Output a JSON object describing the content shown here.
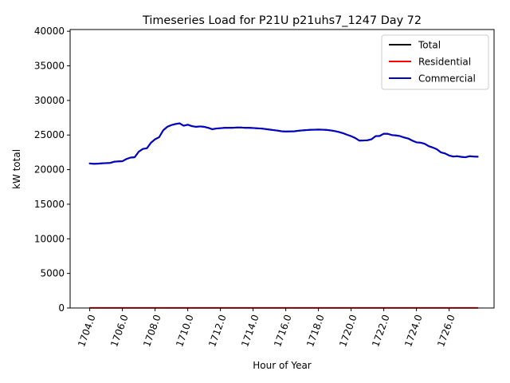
{
  "chart_data": {
    "type": "line",
    "title": "Timeseries Load for P21U p21uhs7_1247  Day 72",
    "xlabel": "Hour of Year",
    "ylabel": "kW total",
    "xlim": [
      1702.8,
      1728.75
    ],
    "ylim": [
      0,
      40250
    ],
    "xticks": [
      1704,
      1706,
      1708,
      1710,
      1712,
      1714,
      1716,
      1718,
      1720,
      1722,
      1724,
      1726
    ],
    "xtick_labels": [
      "1704.0",
      "1706.0",
      "1708.0",
      "1710.0",
      "1712.0",
      "1714.0",
      "1716.0",
      "1718.0",
      "1720.0",
      "1722.0",
      "1724.0",
      "1726.0"
    ],
    "yticks": [
      0,
      5000,
      10000,
      15000,
      20000,
      25000,
      30000,
      35000,
      40000
    ],
    "ytick_labels": [
      "0",
      "5000",
      "10000",
      "15000",
      "20000",
      "25000",
      "30000",
      "35000",
      "40000"
    ],
    "legend_position": "top-right",
    "x": [
      1704.0,
      1704.25,
      1704.5,
      1704.75,
      1705.0,
      1705.25,
      1705.5,
      1705.75,
      1706.0,
      1706.25,
      1706.5,
      1706.75,
      1707.0,
      1707.25,
      1707.5,
      1707.75,
      1708.0,
      1708.25,
      1708.5,
      1708.75,
      1709.0,
      1709.25,
      1709.5,
      1709.75,
      1710.0,
      1710.25,
      1710.5,
      1710.75,
      1711.0,
      1711.25,
      1711.5,
      1711.75,
      1712.0,
      1712.25,
      1712.5,
      1712.75,
      1713.0,
      1713.25,
      1713.5,
      1713.75,
      1714.0,
      1714.25,
      1714.5,
      1714.75,
      1715.0,
      1715.25,
      1715.5,
      1715.75,
      1716.0,
      1716.25,
      1716.5,
      1716.75,
      1717.0,
      1717.25,
      1717.5,
      1717.75,
      1718.0,
      1718.25,
      1718.5,
      1718.75,
      1719.0,
      1719.25,
      1719.5,
      1719.75,
      1720.0,
      1720.25,
      1720.5,
      1720.75,
      1721.0,
      1721.25,
      1721.5,
      1721.75,
      1722.0,
      1722.25,
      1722.5,
      1722.75,
      1723.0,
      1723.25,
      1723.5,
      1723.75,
      1724.0,
      1724.25,
      1724.5,
      1724.75,
      1725.0,
      1725.25,
      1725.5,
      1725.75,
      1726.0,
      1726.25,
      1726.5,
      1726.75,
      1727.0,
      1727.25,
      1727.5,
      1727.75
    ],
    "series": [
      {
        "name": "Total",
        "color": "#000000",
        "values": [
          20900,
          20850,
          20870,
          20920,
          20950,
          20980,
          21150,
          21200,
          21220,
          21550,
          21750,
          21800,
          22600,
          23000,
          23100,
          23900,
          24400,
          24700,
          25700,
          26200,
          26450,
          26600,
          26700,
          26350,
          26500,
          26300,
          26200,
          26250,
          26200,
          26050,
          25850,
          25950,
          26000,
          26050,
          26050,
          26050,
          26100,
          26100,
          26050,
          26050,
          26020,
          25980,
          25950,
          25880,
          25800,
          25720,
          25650,
          25550,
          25520,
          25530,
          25540,
          25620,
          25680,
          25720,
          25760,
          25780,
          25800,
          25780,
          25750,
          25680,
          25580,
          25450,
          25280,
          25050,
          24850,
          24580,
          24200,
          24220,
          24250,
          24400,
          24850,
          24880,
          25200,
          25180,
          25000,
          24950,
          24850,
          24650,
          24500,
          24200,
          23950,
          23900,
          23750,
          23400,
          23200,
          22950,
          22500,
          22350,
          22050,
          21900,
          21950,
          21850,
          21800,
          21950,
          21900,
          21880
        ]
      },
      {
        "name": "Residential",
        "color": "#ff0000",
        "values": [
          20,
          20,
          20,
          20,
          20,
          20,
          20,
          20,
          20,
          20,
          20,
          20,
          20,
          20,
          20,
          20,
          20,
          20,
          20,
          20,
          20,
          20,
          20,
          20,
          20,
          20,
          20,
          20,
          20,
          20,
          20,
          20,
          20,
          20,
          20,
          20,
          20,
          20,
          20,
          20,
          20,
          20,
          20,
          20,
          20,
          20,
          20,
          20,
          20,
          20,
          20,
          20,
          20,
          20,
          20,
          20,
          20,
          20,
          20,
          20,
          20,
          20,
          20,
          20,
          20,
          20,
          20,
          20,
          20,
          20,
          20,
          20,
          20,
          20,
          20,
          20,
          20,
          20,
          20,
          20,
          20,
          20,
          20,
          20,
          20,
          20,
          20,
          20,
          20,
          20,
          20,
          20,
          20,
          20,
          20,
          20
        ]
      },
      {
        "name": "Commercial",
        "color": "#0000cc",
        "values": [
          20880,
          20830,
          20850,
          20900,
          20930,
          20960,
          21130,
          21180,
          21200,
          21530,
          21730,
          21780,
          22580,
          22980,
          23080,
          23880,
          24380,
          24680,
          25680,
          26180,
          26430,
          26580,
          26680,
          26330,
          26480,
          26280,
          26180,
          26230,
          26180,
          26030,
          25830,
          25930,
          25980,
          26030,
          26030,
          26030,
          26080,
          26080,
          26030,
          26030,
          26000,
          25960,
          25930,
          25860,
          25780,
          25700,
          25630,
          25530,
          25500,
          25510,
          25520,
          25600,
          25660,
          25700,
          25740,
          25760,
          25780,
          25760,
          25730,
          25660,
          25560,
          25430,
          25260,
          25030,
          24830,
          24560,
          24180,
          24200,
          24230,
          24380,
          24830,
          24860,
          25180,
          25160,
          24980,
          24930,
          24830,
          24630,
          24480,
          24180,
          23930,
          23880,
          23730,
          23380,
          23180,
          22930,
          22480,
          22330,
          22030,
          21880,
          21930,
          21830,
          21780,
          21930,
          21880,
          21860
        ]
      }
    ]
  }
}
